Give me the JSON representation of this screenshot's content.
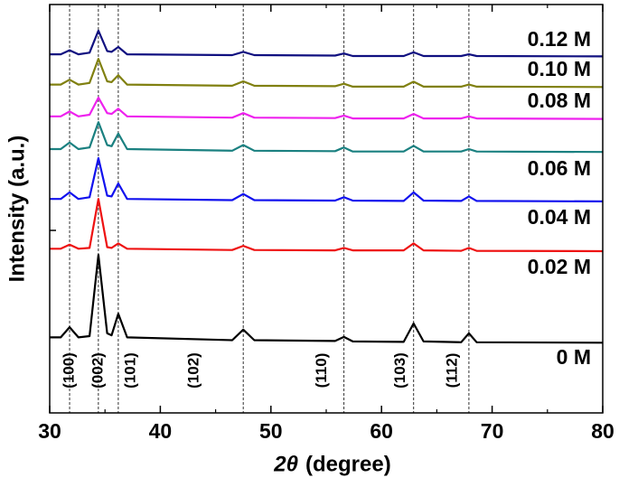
{
  "chart_data": {
    "type": "line",
    "xlabel_symbol": "2θ",
    "xlabel_unit": "(degree)",
    "ylabel": "Intensity (a.u.)",
    "x": [
      30,
      31.0,
      31.8,
      32.6,
      33.6,
      34.4,
      35.2,
      35.6,
      36.2,
      37,
      46.5,
      47.5,
      48.5,
      55.8,
      56.6,
      57.4,
      62,
      62.9,
      63.8,
      67.2,
      67.9,
      68.6,
      80
    ],
    "xlim": [
      30,
      80
    ],
    "xticks": [
      30,
      40,
      50,
      60,
      70,
      80
    ],
    "ylim": [
      0,
      100
    ],
    "reflections": [
      {
        "label": "(100)",
        "x": 31.8
      },
      {
        "label": "(002)",
        "x": 34.4
      },
      {
        "label": "(101)",
        "x": 36.2
      },
      {
        "label": "(102)",
        "x": 47.5
      },
      {
        "label": "(110)",
        "x": 56.6
      },
      {
        "label": "(103)",
        "x": 62.9
      },
      {
        "label": "(112)",
        "x": 67.9
      }
    ],
    "series": [
      {
        "name": "0 M",
        "color": "#000000",
        "values": [
          18.5,
          18.5,
          21,
          18.5,
          18.8,
          38.7,
          19.5,
          19,
          24.3,
          18.5,
          17.8,
          20.4,
          17.8,
          17.6,
          18.6,
          17.5,
          17.4,
          21.9,
          17.5,
          17.3,
          19.5,
          17.3,
          17.2
        ]
      },
      {
        "name": "0.02 M",
        "color": "#ee1111",
        "values": [
          40.2,
          40.2,
          41.2,
          40.2,
          40.4,
          52.4,
          40.6,
          40.4,
          41.5,
          40.2,
          39.9,
          40.9,
          39.9,
          39.8,
          40.4,
          39.8,
          39.8,
          41.5,
          39.8,
          39.7,
          40.4,
          39.7,
          39.6
        ]
      },
      {
        "name": "0.04 M",
        "color": "#1111ee",
        "values": [
          52.4,
          52.4,
          54,
          52.4,
          52.8,
          62.4,
          53.2,
          53,
          56.2,
          52.4,
          52.1,
          53.6,
          52.1,
          52,
          52.8,
          52,
          51.9,
          54,
          52,
          51.9,
          53,
          51.9,
          51.8
        ]
      },
      {
        "name": "0.06 M",
        "color": "#1a8080",
        "values": [
          64.6,
          64.6,
          66.2,
          64.6,
          65,
          71.2,
          65.6,
          65.3,
          68.4,
          64.6,
          64.2,
          65.6,
          64.2,
          64.1,
          65,
          64,
          64,
          65.4,
          64,
          64,
          64.6,
          64,
          63.9
        ]
      },
      {
        "name": "0.08 M",
        "color": "#ee22ee",
        "values": [
          72.6,
          72.6,
          73.8,
          72.6,
          73,
          77.2,
          73.4,
          73.2,
          74.5,
          72.6,
          72.3,
          73.4,
          72.3,
          72.2,
          72.8,
          72.1,
          72.1,
          73.2,
          72.1,
          72.1,
          72.6,
          72.1,
          72
        ]
      },
      {
        "name": "0.10 M",
        "color": "#808010",
        "values": [
          80.4,
          80.4,
          81.6,
          80.4,
          80.8,
          86.7,
          81.2,
          81,
          82.7,
          80.4,
          80.1,
          81.2,
          80.1,
          80,
          80.6,
          79.9,
          79.9,
          81.1,
          79.9,
          79.9,
          80.4,
          79.9,
          79.8
        ]
      },
      {
        "name": "0.12 M",
        "color": "#101080",
        "values": [
          87.8,
          87.8,
          88.8,
          87.8,
          88.2,
          93.6,
          88.6,
          88.4,
          89.6,
          87.8,
          87.6,
          88.4,
          87.6,
          87.5,
          88,
          87.4,
          87.4,
          88.3,
          87.4,
          87.4,
          87.8,
          87.4,
          87.3
        ]
      }
    ]
  }
}
